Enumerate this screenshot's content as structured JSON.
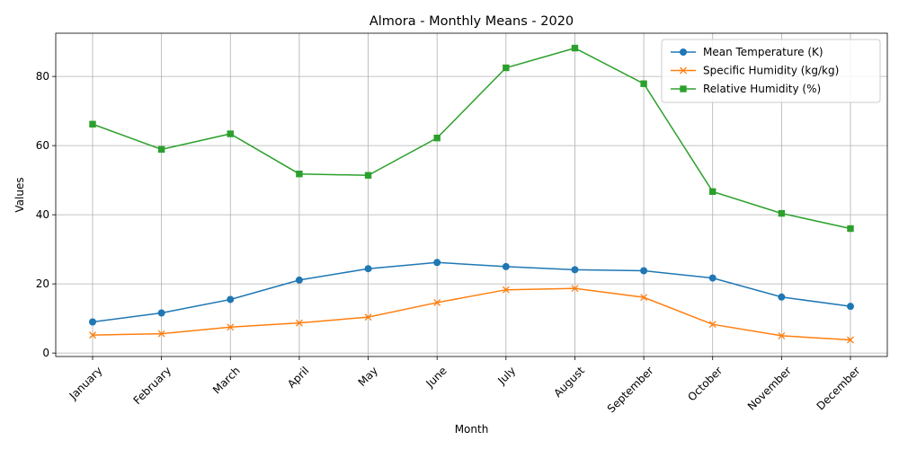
{
  "chart_data": {
    "type": "line",
    "title": "Almora - Monthly Means - 2020",
    "xlabel": "Month",
    "ylabel": "Values",
    "ylim": [
      -1,
      92.5
    ],
    "yticks": [
      0,
      20,
      40,
      60,
      80
    ],
    "grid": true,
    "legend_position": "top-right",
    "categories": [
      "January",
      "February",
      "March",
      "April",
      "May",
      "June",
      "July",
      "August",
      "September",
      "October",
      "November",
      "December"
    ],
    "series": [
      {
        "name": "Mean Temperature (K)",
        "color": "#1f77b4",
        "marker": "circle",
        "values": [
          9.0,
          11.6,
          15.5,
          21.1,
          24.4,
          26.2,
          25.0,
          24.1,
          23.8,
          21.7,
          16.2,
          13.5
        ]
      },
      {
        "name": "Specific Humidity (kg/kg)",
        "color": "#ff7f0e",
        "marker": "x",
        "values": [
          5.2,
          5.6,
          7.5,
          8.7,
          10.4,
          14.6,
          18.3,
          18.7,
          16.1,
          8.3,
          5.0,
          3.8
        ]
      },
      {
        "name": "Relative Humidity (%)",
        "color": "#2ca02c",
        "marker": "square",
        "values": [
          66.2,
          58.9,
          63.4,
          51.8,
          51.4,
          62.2,
          82.5,
          88.2,
          77.9,
          46.7,
          40.4,
          36.0
        ]
      }
    ]
  }
}
